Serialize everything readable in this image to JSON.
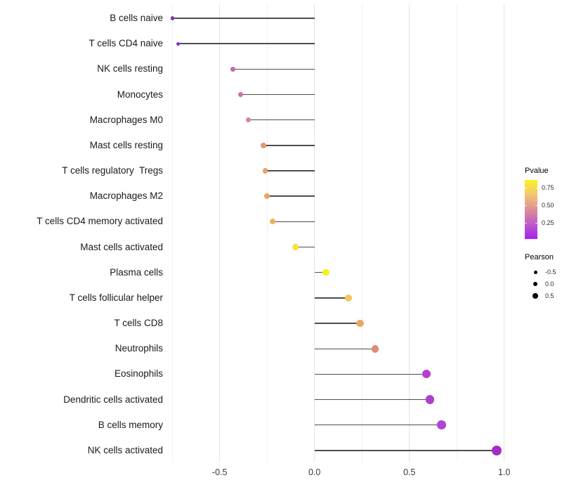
{
  "chart_data": {
    "type": "scatter",
    "subtype": "lollipop",
    "orientation": "horizontal",
    "title": "",
    "xlabel": "",
    "ylabel": "",
    "xlim": [
      -0.85,
      1.05
    ],
    "x_ticks": [
      -0.5,
      0.0,
      0.5,
      1.0
    ],
    "x_tick_labels": [
      "-0.5",
      "0.0",
      "0.5",
      "1.0"
    ],
    "x_minor_gridlines": [
      -0.75,
      -0.25,
      0.25,
      0.75
    ],
    "grid": "vertical-only",
    "baseline_x": 0.0,
    "points": [
      {
        "label": "B cells naive",
        "pearson": -0.75,
        "pvalue_est": 0.03,
        "color": "#8B2EC9"
      },
      {
        "label": "T cells CD4 naive",
        "pearson": -0.72,
        "pvalue_est": 0.04,
        "color": "#8C30CB"
      },
      {
        "label": "NK cells resting",
        "pearson": -0.43,
        "pvalue_est": 0.3,
        "color": "#CC66B4"
      },
      {
        "label": "Monocytes",
        "pearson": -0.39,
        "pvalue_est": 0.33,
        "color": "#CE6FAB"
      },
      {
        "label": "Macrophages M0",
        "pearson": -0.35,
        "pvalue_est": 0.42,
        "color": "#DB8394"
      },
      {
        "label": "Mast cells resting",
        "pearson": -0.27,
        "pvalue_est": 0.52,
        "color": "#E39A70"
      },
      {
        "label": "T cells regulatory  Tregs",
        "pearson": -0.26,
        "pvalue_est": 0.55,
        "color": "#E7A269"
      },
      {
        "label": "Macrophages M2",
        "pearson": -0.25,
        "pvalue_est": 0.56,
        "color": "#E8A667"
      },
      {
        "label": "T cells CD4 memory activated",
        "pearson": -0.22,
        "pvalue_est": 0.61,
        "color": "#ECB35D"
      },
      {
        "label": "Mast cells activated",
        "pearson": -0.1,
        "pvalue_est": 0.8,
        "color": "#F6E53C"
      },
      {
        "label": "Plasma cells",
        "pearson": 0.06,
        "pvalue_est": 0.85,
        "color": "#F7F019"
      },
      {
        "label": "T cells follicular helper",
        "pearson": 0.18,
        "pvalue_est": 0.66,
        "color": "#EFC75E"
      },
      {
        "label": "T cells CD8",
        "pearson": 0.24,
        "pvalue_est": 0.57,
        "color": "#E9A964"
      },
      {
        "label": "Neutrophils",
        "pearson": 0.32,
        "pvalue_est": 0.45,
        "color": "#E08A76"
      },
      {
        "label": "Eosinophils",
        "pearson": 0.59,
        "pvalue_est": 0.14,
        "color": "#B73ECE"
      },
      {
        "label": "Dendritic cells activated",
        "pearson": 0.61,
        "pvalue_est": 0.15,
        "color": "#AD3FD1"
      },
      {
        "label": "B cells memory",
        "pearson": 0.67,
        "pvalue_est": 0.16,
        "color": "#AF44D5"
      },
      {
        "label": "NK cells activated",
        "pearson": 0.96,
        "pvalue_est": 0.07,
        "color": "#A62BC4"
      }
    ],
    "legend_pvalue": {
      "title": "Pvalue",
      "tick_labels": [
        "0.75",
        "0.50",
        "0.25"
      ],
      "tick_values": [
        0.75,
        0.5,
        0.25
      ],
      "range_top": 0.86,
      "range_bottom": 0.02,
      "gradient_stops": [
        "#FAF321",
        "#F2C573",
        "#DC8F96",
        "#BE5BC8",
        "#A322EE"
      ]
    },
    "legend_pearson": {
      "title": "Pearson",
      "items": [
        {
          "label": "-0.5",
          "value": -0.5
        },
        {
          "label": "0.0",
          "value": 0.0
        },
        {
          "label": "0.5",
          "value": 0.5
        }
      ],
      "dot_color": "#000000"
    },
    "style": {
      "stem_color": "#4d4d4d",
      "grid_major_color": "#e4e4e4",
      "grid_minor_color": "#f1f1f1",
      "background": "#ffffff"
    }
  }
}
